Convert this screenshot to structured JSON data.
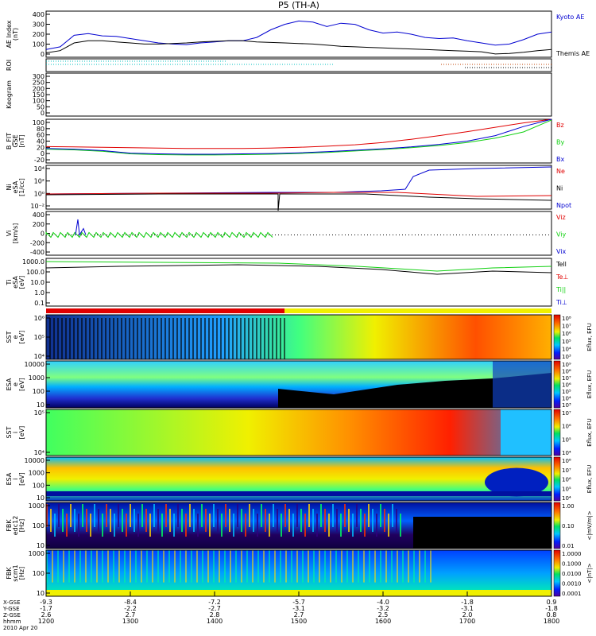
{
  "title": "P5 (TH-A)",
  "colors": {
    "red": "#e00000",
    "green": "#10d010",
    "blue": "#0000d0",
    "black": "#000000",
    "cyan": "#00c0c0"
  },
  "chart_data": {
    "type": "stacked-timeseries",
    "x_ticks": [
      {
        "t": "1200",
        "x_gse": "-9.3",
        "y_gse": "-1.7",
        "z_gse": "2.6"
      },
      {
        "t": "1300",
        "x_gse": "-8.4",
        "y_gse": "-2.2",
        "z_gse": "2.7"
      },
      {
        "t": "1400",
        "x_gse": "-7.2",
        "y_gse": "-2.7",
        "z_gse": "2.8"
      },
      {
        "t": "1500",
        "x_gse": "-5.7",
        "y_gse": "-3.1",
        "z_gse": "2.7"
      },
      {
        "t": "1600",
        "x_gse": "-4.0",
        "y_gse": "-3.2",
        "z_gse": "2.5"
      },
      {
        "t": "1700",
        "x_gse": "-1.8",
        "y_gse": "-3.1",
        "z_gse": "2.0"
      },
      {
        "t": "1800",
        "x_gse": "0.9",
        "y_gse": "-1.8",
        "z_gse": "0.8"
      }
    ],
    "x_row_labels": [
      "X-GSE",
      "Y-GSE",
      "Z-GSE",
      "hhmm",
      "2010 Apr 20"
    ],
    "panels": [
      {
        "id": "ae",
        "ylabel": [
          "AE Index",
          "(nT)"
        ],
        "yticks": [
          "400",
          "300",
          "200",
          "100",
          "0"
        ],
        "series": [
          {
            "name": "Kyoto AE",
            "color": "#0000d0",
            "values": [
              70,
              95,
              200,
              215,
              195,
              190,
              170,
              150,
              130,
              120,
              115,
              130,
              140,
              150,
              150,
              180,
              250,
              300,
              330,
              320,
              280,
              310,
              300,
              250,
              220,
              230,
              210,
              180,
              170,
              175,
              150,
              130,
              110,
              120,
              160,
              210,
              230
            ]
          },
          {
            "name": "Themis AE",
            "color": "#000000",
            "values": [
              40,
              60,
              130,
              150,
              150,
              140,
              130,
              120,
              120,
              125,
              130,
              140,
              145,
              150,
              150,
              140,
              135,
              130,
              125,
              120,
              110,
              100,
              95,
              90,
              85,
              80,
              75,
              70,
              65,
              60,
              55,
              50,
              30,
              35,
              45,
              60,
              70
            ]
          }
        ]
      },
      {
        "id": "roi",
        "ylabel": [
          "ROI"
        ]
      },
      {
        "id": "keogram",
        "ylabel": [
          "Keogram"
        ],
        "yticks": [
          "300",
          "250",
          "200",
          "150",
          "100",
          "50",
          "0"
        ]
      },
      {
        "id": "bfit",
        "ylabel": [
          "B_FIT",
          "GSE",
          "[nT]"
        ],
        "yticks": [
          "100",
          "80",
          "60",
          "40",
          "20",
          "0",
          "-20"
        ],
        "series": [
          {
            "name": "Bz",
            "color": "#e00000",
            "values": [
              25,
              24,
              23,
              22,
              21,
              20,
              20,
              20,
              21,
              23,
              26,
              30,
              36,
              45,
              55,
              66,
              78,
              90,
              100
            ]
          },
          {
            "name": "By",
            "color": "#10d010",
            "values": [
              18,
              16,
              12,
              5,
              3,
              2,
              2,
              3,
              4,
              6,
              9,
              13,
              17,
              22,
              28,
              36,
              48,
              65,
              98
            ]
          },
          {
            "name": "Bx",
            "color": "#0000d0",
            "values": [
              20,
              18,
              14,
              7,
              5,
              4,
              4,
              5,
              6,
              8,
              11,
              15,
              19,
              24,
              31,
              40,
              55,
              80,
              100
            ]
          }
        ]
      },
      {
        "id": "ni",
        "ylabel": [
          "Ni",
          "eSA",
          "[1/cc]"
        ],
        "yticks": [
          "10^4",
          "10^2",
          "10^0",
          "10^-2"
        ]
      },
      {
        "id": "vi",
        "ylabel": [
          "Vi",
          "[km/s]"
        ],
        "yticks": [
          "400",
          "200",
          "0",
          "-200",
          "-400"
        ],
        "series": [
          {
            "name": "Vix",
            "color": "#0000d0"
          },
          {
            "name": "Viy",
            "color": "#10d010"
          },
          {
            "name": "Viz",
            "color": "#e00000"
          }
        ]
      },
      {
        "id": "ti",
        "ylabel": [
          "Ti",
          "eSA",
          "[eV]"
        ],
        "yticks": [
          "1000.0",
          "100.0",
          "10.0",
          "1.0",
          "0.1"
        ]
      },
      {
        "id": "sst_e",
        "ylabel": [
          "SST",
          "e",
          "[eV]"
        ],
        "yticks": [
          "10^6",
          "10^5",
          "10^4"
        ]
      },
      {
        "id": "esa_e",
        "ylabel": [
          "ESA",
          "e",
          "[eV]"
        ],
        "yticks": [
          "10000",
          "1000",
          "100",
          "10"
        ]
      },
      {
        "id": "sst_i",
        "ylabel": [
          "SST",
          "i",
          "[eV]"
        ],
        "yticks": [
          "10^5",
          "10^4"
        ]
      },
      {
        "id": "esa_i",
        "ylabel": [
          "ESA",
          "i",
          "[eV]"
        ],
        "yticks": [
          "10000",
          "1000",
          "100",
          "10"
        ]
      },
      {
        "id": "fbk_e",
        "ylabel": [
          "FBK",
          "edc12",
          "[Hz]"
        ],
        "yticks": [
          "1000",
          "100",
          "10"
        ]
      },
      {
        "id": "fbk_b",
        "ylabel": [
          "FBK",
          "scm1",
          "[Hz]"
        ],
        "yticks": [
          "1000",
          "100",
          "10"
        ]
      }
    ],
    "right_labels": {
      "ae": [
        "Kyoto AE",
        "Themis AE"
      ],
      "bfit": [
        "Bz",
        "By",
        "Bx"
      ],
      "ni": [
        "Ne",
        "Ni",
        "Npot"
      ],
      "vi": [
        "Viz",
        "Viy",
        "Vix"
      ],
      "ti": [
        "Tell",
        "Te⊥",
        "Ti||",
        "Ti⊥"
      ]
    },
    "colorbars": [
      {
        "label": "Eflux, EFU",
        "ticks": [
          "10^8",
          "10^7",
          "10^6",
          "10^5",
          "10^4",
          "10^3"
        ]
      },
      {
        "label": "Eflux, EFU",
        "ticks": [
          "10^9",
          "10^8",
          "10^7",
          "10^6",
          "10^5",
          "10^4",
          "10^3"
        ]
      },
      {
        "label": "Eflux, EFU",
        "ticks": [
          "10^7",
          "10^6",
          "10^5",
          "10^4"
        ]
      },
      {
        "label": "Eflux, EFU",
        "ticks": [
          "10^8",
          "10^7",
          "10^6",
          "10^5",
          "10^4"
        ]
      },
      {
        "label": "<|mV/m|>",
        "ticks": [
          "1.00",
          "0.10",
          "0.01"
        ]
      },
      {
        "label": "<|nT|>",
        "ticks": [
          "1.0000",
          "0.1000",
          "0.0100",
          "0.0010",
          "0.0001"
        ]
      }
    ]
  }
}
